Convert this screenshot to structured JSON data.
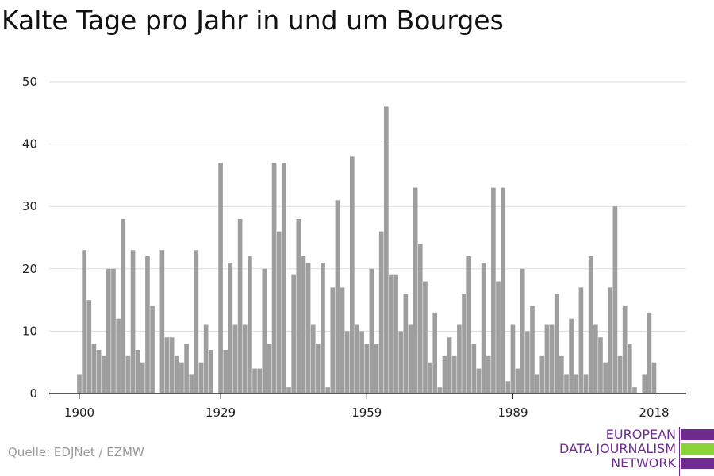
{
  "title": "Kalte Tage pro Jahr in und um Bourges",
  "source": "Quelle: EDJNet / EZMW",
  "logo": {
    "lines": [
      "EUROPEAN",
      "DATA JOURNALISM",
      "NETWORK"
    ],
    "colors": [
      "#6f2c8f",
      "#8cd33b",
      "#6f2c8f"
    ]
  },
  "colors": {
    "bar": "#9e9e9e",
    "grid": "#dddddd",
    "axis": "#222222"
  },
  "chart_data": {
    "type": "bar",
    "title": "Kalte Tage pro Jahr in und um Bourges",
    "xlabel": "",
    "ylabel": "",
    "ylim": [
      0,
      50
    ],
    "yticks": [
      0,
      10,
      20,
      30,
      40,
      50
    ],
    "xticks": [
      1900,
      1929,
      1959,
      1989,
      2018
    ],
    "grid": true,
    "x_start": 1900,
    "x_end": 2021,
    "values": [
      3,
      23,
      15,
      8,
      7,
      6,
      20,
      20,
      12,
      28,
      6,
      23,
      7,
      5,
      22,
      14,
      0,
      23,
      9,
      9,
      6,
      5,
      8,
      3,
      23,
      5,
      11,
      7,
      0,
      37,
      7,
      21,
      11,
      28,
      11,
      22,
      4,
      4,
      20,
      8,
      37,
      26,
      37,
      1,
      19,
      28,
      22,
      21,
      11,
      8,
      21,
      1,
      17,
      31,
      17,
      10,
      38,
      11,
      10,
      8,
      20,
      8,
      26,
      46,
      19,
      19,
      10,
      16,
      11,
      33,
      24,
      18,
      5,
      13,
      1,
      6,
      9,
      6,
      11,
      16,
      22,
      8,
      4,
      21,
      6,
      33,
      18,
      33,
      2,
      11,
      4,
      20,
      10,
      14,
      3,
      6,
      11,
      11,
      16,
      6,
      3,
      12,
      3,
      17,
      3,
      22,
      11,
      9,
      5,
      17,
      30,
      6,
      14,
      8,
      1,
      0,
      3,
      13,
      5,
      0,
      0,
      0
    ]
  }
}
